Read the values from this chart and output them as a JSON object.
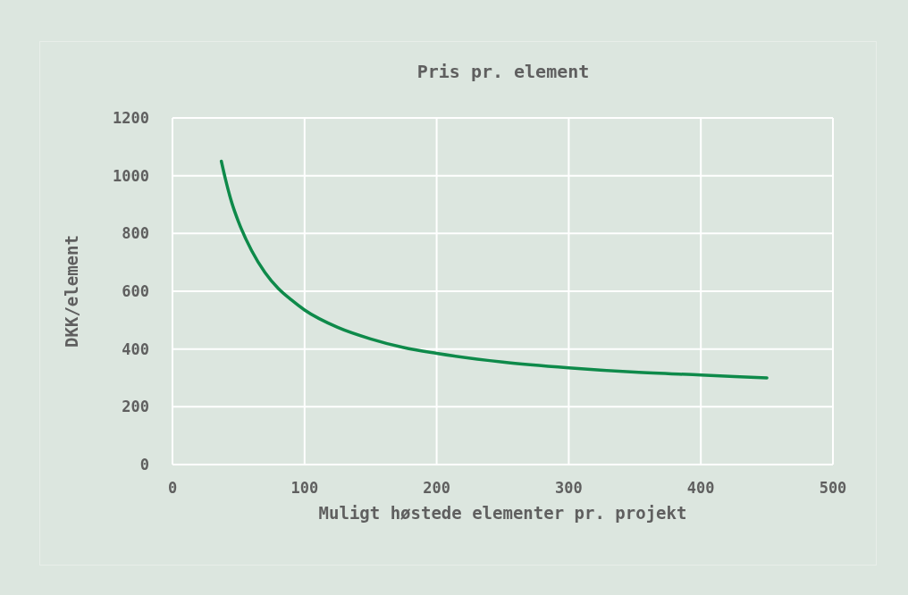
{
  "chart_data": {
    "type": "line",
    "title": "Pris pr. element",
    "xlabel": "Muligt høstede elementer pr. projekt",
    "ylabel": "DKK/element",
    "x": [
      37,
      40,
      45,
      50,
      60,
      70,
      80,
      90,
      100,
      125,
      150,
      175,
      200,
      250,
      300,
      350,
      400,
      450
    ],
    "series": [
      {
        "color": "#0e8a4a",
        "values": [
          1050,
          990,
          905,
          840,
          740,
          665,
          610,
          570,
          535,
          475,
          435,
          405,
          385,
          355,
          335,
          320,
          310,
          300
        ]
      }
    ],
    "xlim": [
      0,
      500
    ],
    "xticks": [
      0,
      100,
      200,
      300,
      400,
      500
    ],
    "ylim": [
      0,
      1200
    ],
    "yticks": [
      0,
      200,
      400,
      600,
      800,
      1000,
      1200
    ],
    "grid": true,
    "marker": "none",
    "line_style": "solid",
    "legend": false
  }
}
